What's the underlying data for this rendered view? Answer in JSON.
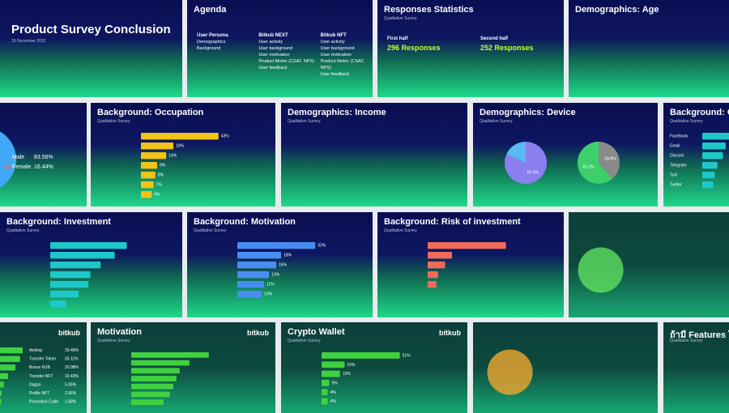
{
  "tiles": [
    {
      "title": "Product Survey Conclusion",
      "subtitle": "19 December 2022"
    },
    {
      "title": "Agenda",
      "columns": [
        {
          "heading": "User Persona",
          "items": [
            "Demographics",
            "Background"
          ]
        },
        {
          "heading": "Bitkub NEXT",
          "items": [
            "User activity",
            "User background",
            "User motivation",
            "Product Metric (CSAT, NPS)",
            "User feedback"
          ]
        },
        {
          "heading": "Bitkub NFT",
          "items": [
            "User activity",
            "User background",
            "User motivation",
            "Product Metric (CSAT, NPS)",
            "User feedback"
          ]
        }
      ]
    },
    {
      "title": "Responses Statistics",
      "subtitle": "Qualitative Survey",
      "columns": [
        {
          "heading": "First half",
          "items": [
            "296 Responses"
          ]
        },
        {
          "heading": "Second half",
          "items": [
            "252 Responses"
          ]
        }
      ]
    },
    {
      "title": "Demographics: Age"
    },
    {
      "legend": {
        "labels": [
          "Male",
          "Female"
        ],
        "values": [
          83.56,
          16.44
        ],
        "value_labels": [
          "83.56%",
          "16.44%"
        ],
        "colors": [
          "#3fa9f5",
          "#f0675a"
        ]
      }
    },
    {
      "title": "Background: Occupation",
      "subtitle": "Qualitative Survey",
      "bars": {
        "color": "#f2c318",
        "values": [
          43,
          18,
          14,
          9,
          8,
          7,
          6
        ],
        "value_labels": [
          "43%",
          "18%",
          "14%",
          "9%",
          "8%",
          "7%",
          "6%"
        ]
      }
    },
    {
      "title": "Demographics: Income",
      "subtitle": "Qualitative Survey"
    },
    {
      "title": "Demographics: Device",
      "subtitle": "Qualitative Survey",
      "pies": [
        {
          "values": [
            81.6,
            18.4
          ],
          "value_labels": [
            "81.6%",
            null
          ],
          "colors": [
            "#8b7ff0",
            "#59b8f5"
          ]
        },
        {
          "values": [
            38.8,
            61.2
          ],
          "value_labels": [
            "38.8%",
            "61.2%"
          ],
          "colors": [
            "#8a8a8a",
            "#3ecf6a"
          ]
        }
      ]
    },
    {
      "title": "Background: C",
      "subtitle": "Qualitative Survey",
      "bars": {
        "color": "#1ec8c8",
        "labels": [
          "Facebook",
          "Email",
          "Discord",
          "Telegram",
          "ไลน์",
          "Twitter"
        ],
        "values": [
          40,
          34,
          30,
          22,
          18,
          16
        ]
      }
    },
    {
      "title": "Background: Investment",
      "subtitle": "Qualitative Survey",
      "bars": {
        "color": "#1ec8c8",
        "values": [
          38,
          32,
          25,
          20,
          19,
          14,
          8
        ]
      }
    },
    {
      "title": "Background: Motivation",
      "subtitle": "Qualitative Survey",
      "bars": {
        "color": "#4a8df0",
        "values": [
          32,
          18,
          16,
          13,
          11,
          10
        ],
        "value_labels": [
          "32%",
          "18%",
          "16%",
          "13%",
          "11%",
          "10%"
        ]
      }
    },
    {
      "title": "Background: Risk of investment",
      "subtitle": "Qualitative Survey",
      "bars": {
        "color": "#f06a5a",
        "values": [
          45,
          14,
          10,
          6,
          5
        ]
      }
    },
    {
      "dark": true
    },
    {
      "dark": true,
      "logo": "bitkub",
      "bars": {
        "color": "#3fd13f",
        "labels": [
          "Airdrop",
          "Transfer Token",
          "Bonus KUB",
          "Transfer NFT",
          "Dapps",
          "Profile NFT",
          "Promotion Code"
        ],
        "values": [
          29.46,
          26.11,
          20.08,
          10.43,
          5.06,
          2.06,
          1.68
        ],
        "value_labels": [
          "29.46%",
          "26.11%",
          "20.08%",
          "10.43%",
          "5.06%",
          "2.06%",
          "1.68%"
        ]
      }
    },
    {
      "dark": true,
      "title": "Motivation",
      "subtitle": "Qualitative Survey",
      "logo": "bitkub",
      "bars": {
        "color": "#3fd13f",
        "values": [
          48,
          36,
          30,
          28,
          26,
          24,
          20
        ]
      }
    },
    {
      "dark": true,
      "title": "Crypto Wallet",
      "subtitle": "Qualitative Survey",
      "logo": "bitkub",
      "bars": {
        "color": "#3fd13f",
        "values": [
          51,
          15,
          12,
          5,
          4,
          4
        ],
        "value_labels": [
          "51%",
          "15%",
          "12%",
          "5%",
          "4%",
          "4%"
        ]
      }
    },
    {
      "dark": true
    },
    {
      "dark": true,
      "title": "ถ้ามี Features ให",
      "subtitle": "Qualitative Survey"
    }
  ]
}
